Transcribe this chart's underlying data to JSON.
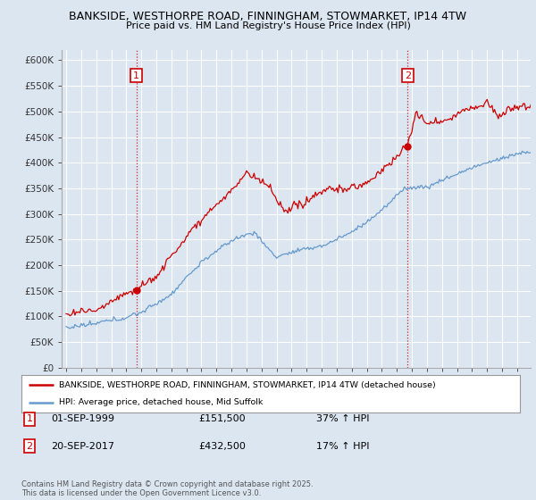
{
  "title_line1": "BANKSIDE, WESTHORPE ROAD, FINNINGHAM, STOWMARKET, IP14 4TW",
  "title_line2": "Price paid vs. HM Land Registry's House Price Index (HPI)",
  "background_color": "#dce6f1",
  "plot_bg_color": "#dce6f1",
  "grid_color": "#ffffff",
  "red_color": "#cc0000",
  "blue_color": "#6699cc",
  "ylim": [
    0,
    620000
  ],
  "yticks": [
    0,
    50000,
    100000,
    150000,
    200000,
    250000,
    300000,
    350000,
    400000,
    450000,
    500000,
    550000,
    600000
  ],
  "ytick_labels": [
    "£0",
    "£50K",
    "£100K",
    "£150K",
    "£200K",
    "£250K",
    "£300K",
    "£350K",
    "£400K",
    "£450K",
    "£500K",
    "£550K",
    "£600K"
  ],
  "annotation1": {
    "label": "1",
    "x_line": 1999.67,
    "y": 151500
  },
  "annotation2": {
    "label": "2",
    "x_line": 2017.72,
    "y": 432500
  },
  "legend_line1": "BANKSIDE, WESTHORPE ROAD, FINNINGHAM, STOWMARKET, IP14 4TW (detached house)",
  "legend_line2": "HPI: Average price, detached house, Mid Suffolk",
  "copyright_text": "Contains HM Land Registry data © Crown copyright and database right 2025.\nThis data is licensed under the Open Government Licence v3.0.",
  "hpi_start_year": 1995.0,
  "xlim_left": 1994.7,
  "xlim_right": 2025.9
}
